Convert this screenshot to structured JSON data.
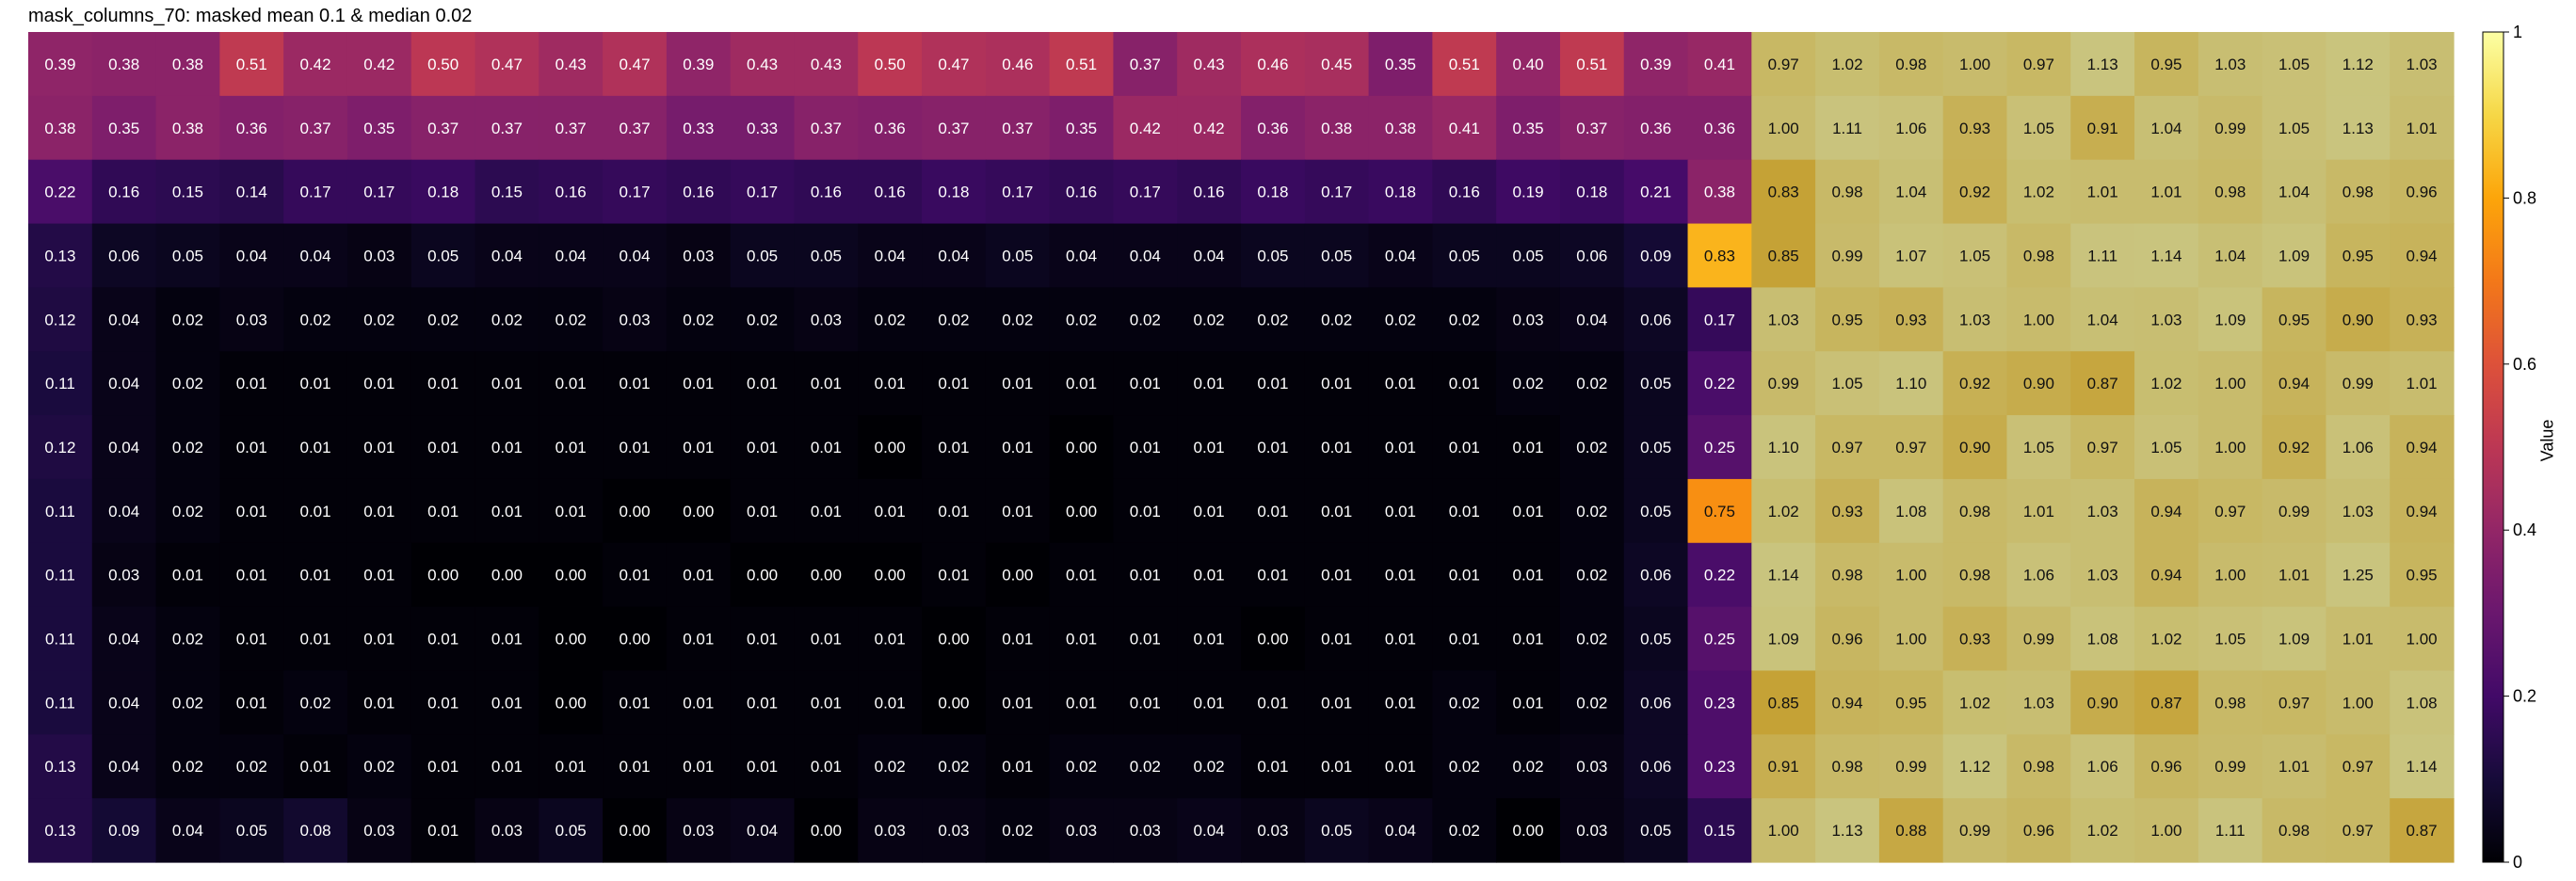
{
  "chart_data": {
    "type": "heatmap",
    "title": "mask_columns_70: masked mean 0.1 & median 0.02",
    "colorbar": {
      "label": "Value",
      "colormap": "inferno",
      "range": [
        0,
        1
      ],
      "ticks": [
        0,
        0.2,
        0.4,
        0.6,
        0.8,
        1
      ],
      "tick_labels": [
        "0",
        "0.2",
        "0.4",
        "0.6",
        "0.8",
        "1"
      ]
    },
    "masked_cell_color": "#c9c47e",
    "n_rows": 13,
    "n_cols": 38,
    "n_masked_cols": 11,
    "values": [
      [
        0.39,
        0.38,
        0.38,
        0.51,
        0.42,
        0.42,
        0.5,
        0.47,
        0.43,
        0.47,
        0.39,
        0.43,
        0.43,
        0.5,
        0.47,
        0.46,
        0.51,
        0.37,
        0.43,
        0.46,
        0.45,
        0.35,
        0.51,
        0.4,
        0.51,
        0.39,
        0.41,
        0.97,
        1.02,
        0.98,
        1.0,
        0.97,
        1.13,
        0.95,
        1.03,
        1.05,
        1.12,
        1.03
      ],
      [
        0.38,
        0.35,
        0.38,
        0.36,
        0.37,
        0.35,
        0.37,
        0.37,
        0.37,
        0.37,
        0.33,
        0.33,
        0.37,
        0.36,
        0.37,
        0.37,
        0.35,
        0.42,
        0.42,
        0.36,
        0.38,
        0.38,
        0.41,
        0.35,
        0.37,
        0.36,
        0.36,
        1.0,
        1.11,
        1.06,
        0.93,
        1.05,
        0.91,
        1.04,
        0.99,
        1.05,
        1.13,
        1.01
      ],
      [
        0.22,
        0.16,
        0.15,
        0.14,
        0.17,
        0.17,
        0.18,
        0.15,
        0.16,
        0.17,
        0.16,
        0.17,
        0.16,
        0.16,
        0.18,
        0.17,
        0.16,
        0.17,
        0.16,
        0.18,
        0.17,
        0.18,
        0.16,
        0.19,
        0.18,
        0.21,
        0.38,
        0.83,
        0.98,
        1.04,
        0.92,
        1.02,
        1.01,
        1.01,
        0.98,
        1.04,
        0.98,
        0.96
      ],
      [
        0.13,
        0.06,
        0.05,
        0.04,
        0.04,
        0.03,
        0.05,
        0.04,
        0.04,
        0.04,
        0.03,
        0.05,
        0.05,
        0.04,
        0.04,
        0.05,
        0.04,
        0.04,
        0.04,
        0.05,
        0.05,
        0.04,
        0.05,
        0.05,
        0.06,
        0.09,
        0.83,
        0.85,
        0.99,
        1.07,
        1.05,
        0.98,
        1.11,
        1.14,
        1.04,
        1.09,
        0.95,
        0.94
      ],
      [
        0.12,
        0.04,
        0.02,
        0.03,
        0.02,
        0.02,
        0.02,
        0.02,
        0.02,
        0.03,
        0.02,
        0.02,
        0.03,
        0.02,
        0.02,
        0.02,
        0.02,
        0.02,
        0.02,
        0.02,
        0.02,
        0.02,
        0.02,
        0.03,
        0.04,
        0.06,
        0.17,
        1.03,
        0.95,
        0.93,
        1.03,
        1.0,
        1.04,
        1.03,
        1.09,
        0.95,
        0.9,
        0.93
      ],
      [
        0.11,
        0.04,
        0.02,
        0.01,
        0.01,
        0.01,
        0.01,
        0.01,
        0.01,
        0.01,
        0.01,
        0.01,
        0.01,
        0.01,
        0.01,
        0.01,
        0.01,
        0.01,
        0.01,
        0.01,
        0.01,
        0.01,
        0.01,
        0.02,
        0.02,
        0.05,
        0.22,
        0.99,
        1.05,
        1.1,
        0.92,
        0.9,
        0.87,
        1.02,
        1.0,
        0.94,
        0.99,
        1.01
      ],
      [
        0.12,
        0.04,
        0.02,
        0.01,
        0.01,
        0.01,
        0.01,
        0.01,
        0.01,
        0.01,
        0.01,
        0.01,
        0.01,
        0.0,
        0.01,
        0.01,
        0.0,
        0.01,
        0.01,
        0.01,
        0.01,
        0.01,
        0.01,
        0.01,
        0.02,
        0.05,
        0.25,
        1.1,
        0.97,
        0.97,
        0.9,
        1.05,
        0.97,
        1.05,
        1.0,
        0.92,
        1.06,
        0.94
      ],
      [
        0.11,
        0.04,
        0.02,
        0.01,
        0.01,
        0.01,
        0.01,
        0.01,
        0.01,
        0.0,
        0.0,
        0.01,
        0.01,
        0.01,
        0.01,
        0.01,
        0.0,
        0.01,
        0.01,
        0.01,
        0.01,
        0.01,
        0.01,
        0.01,
        0.02,
        0.05,
        0.75,
        1.02,
        0.93,
        1.08,
        0.98,
        1.01,
        1.03,
        0.94,
        0.97,
        0.99,
        1.03,
        0.94
      ],
      [
        0.11,
        0.03,
        0.01,
        0.01,
        0.01,
        0.01,
        0.0,
        0.0,
        0.0,
        0.01,
        0.01,
        0.0,
        0.0,
        0.0,
        0.01,
        0.0,
        0.01,
        0.01,
        0.01,
        0.01,
        0.01,
        0.01,
        0.01,
        0.01,
        0.02,
        0.06,
        0.22,
        1.14,
        0.98,
        1.0,
        0.98,
        1.06,
        1.03,
        0.94,
        1.0,
        1.01,
        1.25,
        0.95
      ],
      [
        0.11,
        0.04,
        0.02,
        0.01,
        0.01,
        0.01,
        0.01,
        0.01,
        0.0,
        0.0,
        0.01,
        0.01,
        0.01,
        0.01,
        0.0,
        0.01,
        0.01,
        0.01,
        0.01,
        0.0,
        0.01,
        0.01,
        0.01,
        0.01,
        0.02,
        0.05,
        0.25,
        1.09,
        0.96,
        1.0,
        0.93,
        0.99,
        1.08,
        1.02,
        1.05,
        1.09,
        1.01,
        1.0
      ],
      [
        0.11,
        0.04,
        0.02,
        0.01,
        0.02,
        0.01,
        0.01,
        0.01,
        0.0,
        0.01,
        0.01,
        0.01,
        0.01,
        0.01,
        0.0,
        0.01,
        0.01,
        0.01,
        0.01,
        0.01,
        0.01,
        0.01,
        0.02,
        0.01,
        0.02,
        0.06,
        0.23,
        0.85,
        0.94,
        0.95,
        1.02,
        1.03,
        0.9,
        0.87,
        0.98,
        0.97,
        1.0,
        1.08
      ],
      [
        0.13,
        0.04,
        0.02,
        0.02,
        0.01,
        0.02,
        0.01,
        0.01,
        0.01,
        0.01,
        0.01,
        0.01,
        0.01,
        0.02,
        0.02,
        0.01,
        0.02,
        0.02,
        0.02,
        0.01,
        0.01,
        0.01,
        0.02,
        0.02,
        0.03,
        0.06,
        0.23,
        0.91,
        0.98,
        0.99,
        1.12,
        0.98,
        1.06,
        0.96,
        0.99,
        1.01,
        0.97,
        1.14
      ],
      [
        0.13,
        0.09,
        0.04,
        0.05,
        0.08,
        0.03,
        0.01,
        0.03,
        0.05,
        0.0,
        0.03,
        0.04,
        0.0,
        0.03,
        0.03,
        0.02,
        0.03,
        0.03,
        0.04,
        0.03,
        0.05,
        0.04,
        0.02,
        0.0,
        0.03,
        0.05,
        0.15,
        1.0,
        1.13,
        0.88,
        0.99,
        0.96,
        1.02,
        1.0,
        1.11,
        0.98,
        0.97,
        0.87
      ]
    ]
  }
}
